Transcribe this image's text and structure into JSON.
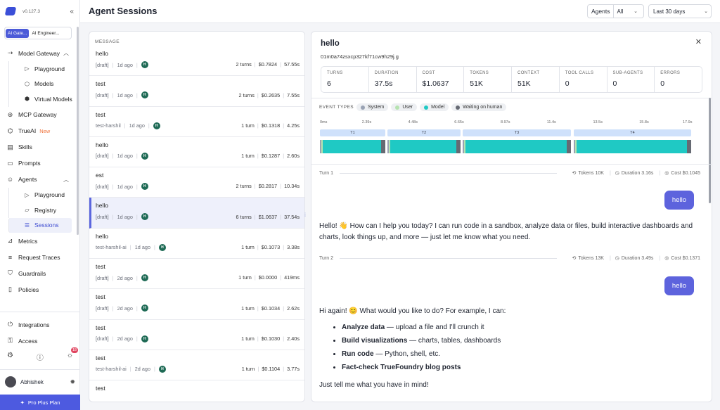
{
  "sidebar": {
    "version": "v0.127.3",
    "workspaces": [
      "AI Gate...",
      "AI Engineer..."
    ],
    "items": [
      {
        "label": "Model Gateway",
        "icon": "route-icon"
      },
      {
        "label": "Playground",
        "icon": "play-icon"
      },
      {
        "label": "Models",
        "icon": "cube-icon"
      },
      {
        "label": "Virtual Models",
        "icon": "cube-outline-icon"
      },
      {
        "label": "MCP Gateway",
        "icon": "mcp-icon"
      },
      {
        "label": "TrueAI",
        "icon": "trueai-icon",
        "badge": "New"
      },
      {
        "label": "Skills",
        "icon": "skills-icon"
      },
      {
        "label": "Prompts",
        "icon": "prompt-icon"
      },
      {
        "label": "Agents",
        "icon": "agent-icon"
      },
      {
        "label": "Playground",
        "icon": "play-icon"
      },
      {
        "label": "Registry",
        "icon": "folder-icon"
      },
      {
        "label": "Sessions",
        "icon": "sessions-icon"
      },
      {
        "label": "Metrics",
        "icon": "chart-icon"
      },
      {
        "label": "Request Traces",
        "icon": "traces-icon"
      },
      {
        "label": "Guardrails",
        "icon": "shield-icon"
      },
      {
        "label": "Policies",
        "icon": "document-icon"
      }
    ],
    "bottom_items": [
      {
        "label": "Integrations",
        "icon": "plug-icon"
      },
      {
        "label": "Access",
        "icon": "key-icon"
      }
    ],
    "notifications": "18",
    "user_name": "Abhishek",
    "plan_label": "Pro Plus Plan"
  },
  "header": {
    "title": "Agent Sessions",
    "agents_filter_label": "Agents",
    "agents_filter_value": "All",
    "date_range": "Last 30 days"
  },
  "list": {
    "column_header": "MESSAGE",
    "rows": [
      {
        "name": "hello",
        "user": "[draft]",
        "time": "1d ago",
        "turns": "2 turns",
        "cost": "$0.7824",
        "duration": "57.55s"
      },
      {
        "name": "test",
        "user": "[draft]",
        "time": "1d ago",
        "turns": "2 turns",
        "cost": "$0.2635",
        "duration": "7.55s"
      },
      {
        "name": "test",
        "user": "test-harshil",
        "time": "1d ago",
        "turns": "1 turn",
        "cost": "$0.1318",
        "duration": "4.25s"
      },
      {
        "name": "hello",
        "user": "[draft]",
        "time": "1d ago",
        "turns": "1 turn",
        "cost": "$0.1287",
        "duration": "2.60s"
      },
      {
        "name": "est",
        "user": "[draft]",
        "time": "1d ago",
        "turns": "2 turns",
        "cost": "$0.2817",
        "duration": "10.34s"
      },
      {
        "name": "hello",
        "user": "[draft]",
        "time": "1d ago",
        "turns": "6 turns",
        "cost": "$1.0637",
        "duration": "37.54s",
        "selected": true
      },
      {
        "name": "hello",
        "user": "test-harshil-ai",
        "time": "1d ago",
        "turns": "1 turn",
        "cost": "$0.1073",
        "duration": "3.38s"
      },
      {
        "name": "test",
        "user": "[draft]",
        "time": "2d ago",
        "turns": "1 turn",
        "cost": "$0.0000",
        "duration": "419ms"
      },
      {
        "name": "test",
        "user": "[draft]",
        "time": "2d ago",
        "turns": "1 turn",
        "cost": "$0.1034",
        "duration": "2.62s"
      },
      {
        "name": "test",
        "user": "[draft]",
        "time": "2d ago",
        "turns": "1 turn",
        "cost": "$0.1030",
        "duration": "2.40s"
      },
      {
        "name": "test",
        "user": "test-harshil-ai",
        "time": "2d ago",
        "turns": "1 turn",
        "cost": "$0.1104",
        "duration": "3.77s"
      },
      {
        "name": "test",
        "user": "",
        "time": "",
        "turns": "",
        "cost": "",
        "duration": ""
      }
    ],
    "avatar_initial": "H"
  },
  "detail": {
    "title": "hello",
    "session_id": "01m0a74zsxcp327kf71cw9h29j.g",
    "metrics": [
      {
        "label": "TURNS",
        "value": "6"
      },
      {
        "label": "DURATION",
        "value": "37.5s"
      },
      {
        "label": "COST",
        "value": "$1.0637"
      },
      {
        "label": "TOKENS",
        "value": "51K"
      },
      {
        "label": "CONTEXT",
        "value": "51K"
      },
      {
        "label": "TOOL CALLS",
        "value": "0"
      },
      {
        "label": "SUB-AGENTS",
        "value": "0"
      },
      {
        "label": "ERRORS",
        "value": "0"
      }
    ],
    "event_types_label": "EVENT TYPES",
    "event_types": [
      {
        "label": "System",
        "color": "#9aa3b4"
      },
      {
        "label": "User",
        "color": "#b6e3b0"
      },
      {
        "label": "Model",
        "color": "#1fc9c4"
      },
      {
        "label": "Waiting on human",
        "color": "#666a73"
      }
    ],
    "timeline_ticks": [
      "0ms",
      "2.39s",
      "4.48s",
      "6.65s",
      "8.97s",
      "11.4s",
      "13.5s",
      "15.8s",
      "17.9s"
    ],
    "timeline_turns": [
      "T1",
      "T2",
      "T3",
      "T4"
    ],
    "turns": [
      {
        "label": "Turn 1",
        "tokens": "Tokens 10K",
        "duration": "Duration 3.16s",
        "cost": "Cost $0.1045",
        "user_message": "hello",
        "assistant_message": "Hello! 👋 How can I help you today? I can run code in a sandbox, analyze data or files, build interactive dashboards and charts, look things up, and more — just let me know what you need."
      },
      {
        "label": "Turn 2",
        "tokens": "Tokens 13K",
        "duration": "Duration 3.49s",
        "cost": "Cost $0.1371",
        "user_message": "hello",
        "assistant_intro": "Hi again! 😊 What would you like to do? For example, I can:",
        "bullets": [
          {
            "bold": "Analyze data",
            "rest": " — upload a file and I'll crunch it"
          },
          {
            "bold": "Build visualizations",
            "rest": " — charts, tables, dashboards"
          },
          {
            "bold": "Run code",
            "rest": " — Python, shell, etc."
          },
          {
            "bold": "Fact-check TrueFoundry blog posts",
            "rest": ""
          }
        ],
        "assistant_outro": "Just tell me what you have in mind!"
      }
    ]
  }
}
